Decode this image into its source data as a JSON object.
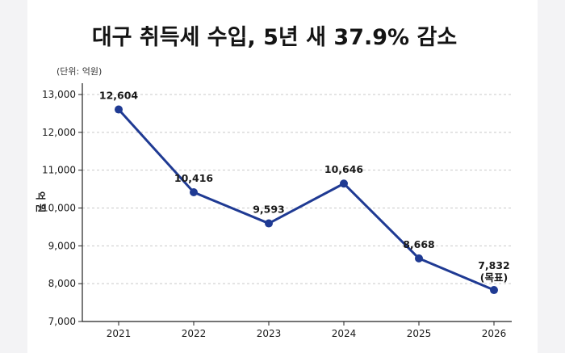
{
  "chart_data": {
    "type": "line",
    "title": "대구 취득세 수입, 5년 새 37.9% 감소",
    "unit_note": "(단위: 억원)",
    "ylabel": "억 원",
    "xlabel": "",
    "categories": [
      "2021",
      "2022",
      "2023",
      "2024",
      "2025",
      "2026"
    ],
    "series": [
      {
        "values": [
          12604,
          10416,
          9593,
          10646,
          8668,
          7832
        ],
        "labels": [
          "12,604",
          "10,416",
          "9,593",
          "10,646",
          "8,668",
          "7,832"
        ]
      }
    ],
    "point_notes": [
      "",
      "",
      "",
      "",
      "",
      "(목표)"
    ],
    "yticks": [
      7000,
      8000,
      9000,
      10000,
      11000,
      12000,
      13000
    ],
    "ytick_labels": [
      "7,000",
      "8,000",
      "9,000",
      "10,000",
      "11,000",
      "12,000",
      "13,000"
    ],
    "ylim": [
      7000,
      13000
    ],
    "grid": true,
    "colors": {
      "line": "#1f3a93",
      "grid": "#c9c9c9",
      "axis": "#222222"
    }
  }
}
